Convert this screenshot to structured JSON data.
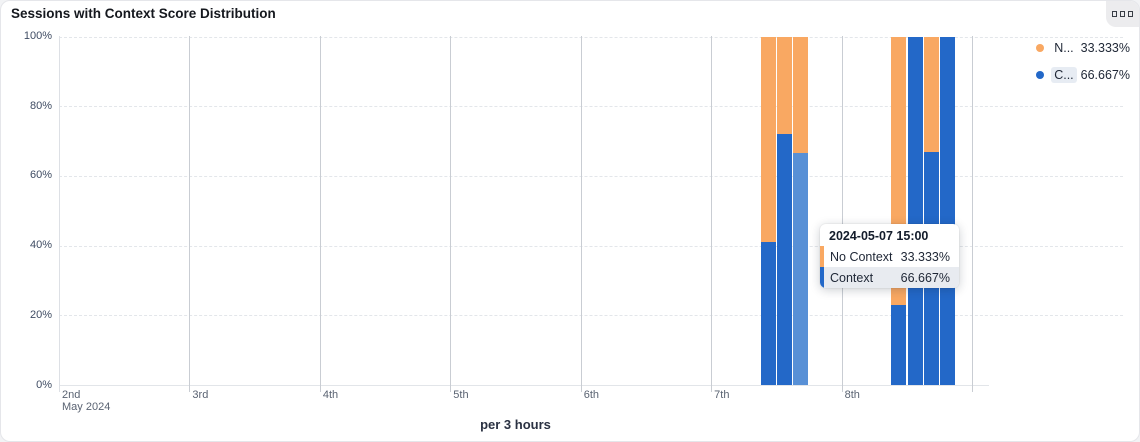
{
  "header": {
    "title": "Sessions with Context Score Distribution"
  },
  "options_button": {
    "icon": "three-squares-icon"
  },
  "chart_data": {
    "type": "bar",
    "stacked": true,
    "unit": "percent",
    "title": "Sessions with Context Score Distribution",
    "x_axis_title": "per 3 hours",
    "x_axis_subtitle": "May 2024",
    "x_tick_labels": [
      "2nd",
      "3rd",
      "4th",
      "5th",
      "6th",
      "7th",
      "8th"
    ],
    "y_ticks": [
      "0%",
      "20%",
      "40%",
      "60%",
      "80%",
      "100%"
    ],
    "ylim": [
      0,
      100
    ],
    "grid": {
      "horizontal": "dashed",
      "vertical": "solid-per-day"
    },
    "colors": {
      "context": "#2368c8",
      "no_context": "#f9a862",
      "context_highlight": "#5890d6"
    },
    "series": [
      {
        "name": "No Context",
        "color": "#f9a862"
      },
      {
        "name": "Context",
        "color": "#2368c8"
      }
    ],
    "bars": [
      {
        "date": "2024-05-07",
        "time": "09:00",
        "context_pct": 41,
        "no_context_pct": 59,
        "highlighted": false
      },
      {
        "date": "2024-05-07",
        "time": "12:00",
        "context_pct": 72,
        "no_context_pct": 28,
        "highlighted": false
      },
      {
        "date": "2024-05-07",
        "time": "15:00",
        "context_pct": 66.667,
        "no_context_pct": 33.333,
        "highlighted": true
      },
      {
        "date": "2024-05-08",
        "time": "09:00",
        "context_pct": 23,
        "no_context_pct": 77,
        "highlighted": false
      },
      {
        "date": "2024-05-08",
        "time": "12:00",
        "context_pct": 100,
        "no_context_pct": 0,
        "highlighted": false
      },
      {
        "date": "2024-05-08",
        "time": "15:00",
        "context_pct": 67,
        "no_context_pct": 33,
        "highlighted": false
      },
      {
        "date": "2024-05-08",
        "time": "18:00",
        "context_pct": 100,
        "no_context_pct": 0,
        "highlighted": false
      }
    ],
    "legend": [
      {
        "label": "N...",
        "value": "33.333%",
        "color": "#f9a862",
        "highlighted": false
      },
      {
        "label": "C...",
        "value": "66.667%",
        "color": "#2368c8",
        "highlighted": true
      }
    ],
    "legend_position": "top-right"
  },
  "tooltip": {
    "title": "2024-05-07 15:00",
    "rows": [
      {
        "label": "No Context",
        "value": "33.333%",
        "color": "#f9a862",
        "highlighted": false
      },
      {
        "label": "Context",
        "value": "66.667%",
        "color": "#2368c8",
        "highlighted": true
      }
    ]
  }
}
